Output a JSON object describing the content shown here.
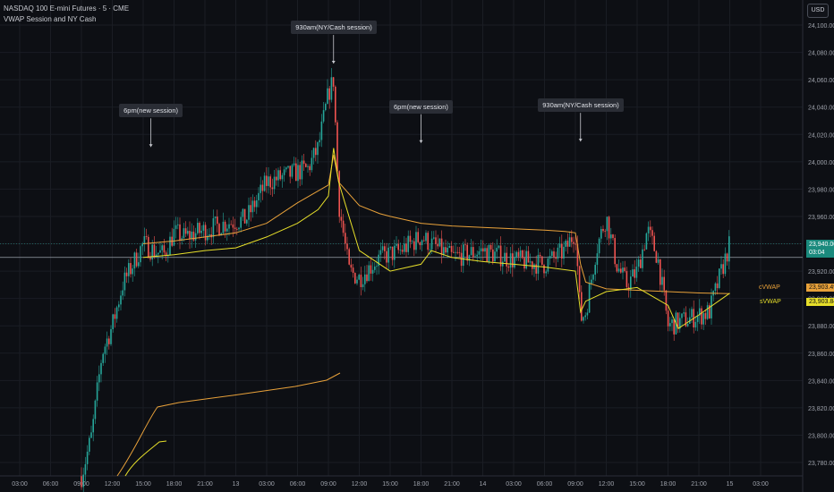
{
  "header": {
    "symbol": "NASDAQ 100 E-mini Futures · 5 · CME",
    "indicator": "VWAP Session and NY Cash"
  },
  "currency_label": "USD",
  "colors": {
    "background": "#0d0f14",
    "grid": "#1a1d24",
    "up": "#26a69a",
    "down": "#ef5350",
    "cvwap": "#e8a13a",
    "svwap": "#e7df2a",
    "last_price_tag": "#1a8a7d",
    "white_line": "#9aa0aa"
  },
  "annotations": [
    {
      "text": "6pm(new session)",
      "x": "15:45 Mar 12",
      "y": 24037
    },
    {
      "text": "930am(NY/Cash session)",
      "x": "09:30 Mar 13",
      "y": 24098
    },
    {
      "text": "6pm(new session)",
      "x": "18:00 Mar 13",
      "y": 24040
    },
    {
      "text": "930am(NY/Cash session)",
      "x": "09:30 Mar 14",
      "y": 24041
    }
  ],
  "price_tags": {
    "last_price": "23,940.00",
    "countdown": "03:04",
    "cvwap_label": "cVWAP",
    "cvwap_value": "23,903.49",
    "svwap_label": "sVWAP",
    "svwap_value": "23,903.84"
  },
  "chart_data": {
    "type": "line",
    "title": "",
    "xlabel": "",
    "ylabel": "",
    "ylim": [
      23770,
      24110
    ],
    "x_ticks": [
      "03:00",
      "06:00",
      "09:00",
      "12:00",
      "15:00",
      "18:00",
      "21:00",
      "13",
      "03:00",
      "06:00",
      "09:00",
      "12:00",
      "15:00",
      "18:00",
      "21:00",
      "14",
      "03:00",
      "06:00",
      "09:00",
      "12:00",
      "15:00",
      "18:00",
      "21:00",
      "15",
      "03:00"
    ],
    "y_ticks": [
      "24,100.00",
      "24,080.00",
      "24,060.00",
      "24,040.00",
      "24,020.00",
      "24,000.00",
      "23,980.00",
      "23,960.00",
      "23,940.00",
      "23,920.00",
      "23,900.00",
      "23,880.00",
      "23,860.00",
      "23,840.00",
      "23,820.00",
      "23,800.00",
      "23,780.00"
    ],
    "series": [
      {
        "name": "Price",
        "x": [
          "09:00 Mar 12",
          "10:00 Mar 12",
          "11:00 Mar 12",
          "12:00 Mar 12",
          "13:00 Mar 12",
          "14:00 Mar 12",
          "15:00 Mar 12",
          "16:00 Mar 12",
          "17:00 Mar 12",
          "18:00 Mar 12",
          "19:00 Mar 12",
          "21:00 Mar 12",
          "23:00 Mar 12",
          "01:00 Mar 13",
          "03:00 Mar 13",
          "05:00 Mar 13",
          "07:00 Mar 13",
          "08:00 Mar 13",
          "09:00 Mar 13",
          "09:30 Mar 13",
          "10:00 Mar 13",
          "11:00 Mar 13",
          "12:00 Mar 13",
          "14:00 Mar 13",
          "16:00 Mar 13",
          "18:00 Mar 13",
          "21:00 Mar 13",
          "00:00 Mar 14",
          "03:00 Mar 14",
          "06:00 Mar 14",
          "08:00 Mar 14",
          "09:00 Mar 14",
          "09:30 Mar 14",
          "10:00 Mar 14",
          "11:00 Mar 14",
          "12:00 Mar 14",
          "13:00 Mar 14",
          "14:00 Mar 14",
          "15:00 Mar 14",
          "16:00 Mar 14",
          "17:00 Mar 14",
          "18:00 Mar 14",
          "20:00 Mar 14",
          "22:00 Mar 14",
          "00:00 Mar 15"
        ],
        "values": [
          23770,
          23800,
          23860,
          23880,
          23910,
          23925,
          23940,
          23935,
          23932,
          23948,
          23945,
          23950,
          23955,
          23958,
          23985,
          23990,
          23995,
          24010,
          24050,
          24060,
          23970,
          23920,
          23915,
          23930,
          23935,
          23945,
          23930,
          23935,
          23928,
          23925,
          23935,
          23950,
          23885,
          23890,
          23935,
          23960,
          23925,
          23910,
          23920,
          23950,
          23930,
          23880,
          23885,
          23890,
          23940
        ]
      },
      {
        "name": "cVWAP",
        "x": [
          "15:00 Mar 12",
          "18:00 Mar 12",
          "21:00 Mar 12",
          "00:00 Mar 13",
          "03:00 Mar 13",
          "06:00 Mar 13",
          "09:00 Mar 13",
          "09:30 Mar 13",
          "10:00 Mar 13",
          "12:00 Mar 13",
          "14:00 Mar 13",
          "15:00 Mar 13",
          "18:00 Mar 13",
          "21:00 Mar 13",
          "00:00 Mar 14",
          "03:00 Mar 14",
          "06:00 Mar 14",
          "08:00 Mar 14",
          "09:00 Mar 14",
          "09:30 Mar 14",
          "10:00 Mar 14",
          "12:00 Mar 14",
          "15:00 Mar 14",
          "18:00 Mar 14",
          "21:00 Mar 14",
          "00:00 Mar 15"
        ],
        "values": [
          23940,
          23942,
          23945,
          23948,
          23955,
          23970,
          23983,
          24005,
          23985,
          23968,
          23962,
          23960,
          23955,
          23953,
          23952,
          23951,
          23950,
          23949,
          23948,
          23925,
          23912,
          23907,
          23906,
          23905,
          23904,
          23903.49
        ]
      },
      {
        "name": "sVWAP",
        "x": [
          "15:00 Mar 12",
          "18:00 Mar 12",
          "21:00 Mar 12",
          "00:00 Mar 13",
          "03:00 Mar 13",
          "06:00 Mar 13",
          "08:00 Mar 13",
          "09:00 Mar 13",
          "09:30 Mar 13",
          "10:00 Mar 13",
          "12:00 Mar 13",
          "15:00 Mar 13",
          "18:00 Mar 13",
          "19:00 Mar 13",
          "21:00 Mar 13",
          "00:00 Mar 14",
          "03:00 Mar 14",
          "06:00 Mar 14",
          "09:00 Mar 14",
          "09:30 Mar 14",
          "10:00 Mar 14",
          "12:00 Mar 14",
          "15:00 Mar 14",
          "18:00 Mar 14",
          "19:00 Mar 14",
          "21:00 Mar 14",
          "00:00 Mar 15"
        ],
        "values": [
          23930,
          23932,
          23935,
          23937,
          23945,
          23955,
          23965,
          23975,
          24010,
          23985,
          23935,
          23920,
          23925,
          23935,
          23930,
          23927,
          23925,
          23923,
          23920,
          23890,
          23898,
          23905,
          23908,
          23895,
          23878,
          23888,
          23903.84
        ]
      }
    ]
  }
}
